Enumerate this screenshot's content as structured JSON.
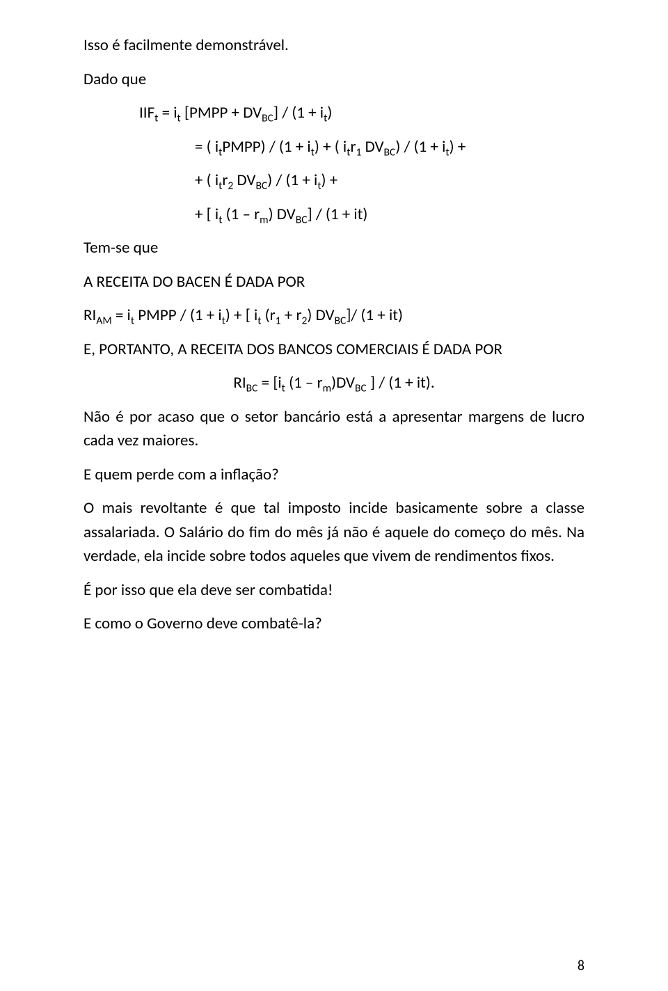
{
  "p1": "Isso é facilmente demonstrável.",
  "p2": "Dado que",
  "eq1a": "IIF",
  "eq1b": " = i",
  "eq1c": " [PMPP  +  DV",
  "eq1d": "] / (1  +  i",
  "eq1e": ")",
  "eq2a": "= ( i",
  "eq2b": "PMPP) / (1  +  i",
  "eq2c": ") + ( i",
  "eq2d": "r",
  "eq2e": " DV",
  "eq2f": ") / (1  +  i",
  "eq2g": ") +",
  "eq3a": "+ ( i",
  "eq3b": "r",
  "eq3c": " DV",
  "eq3d": ") / (1  +  i",
  "eq3e": ") +",
  "eq4a": "+ [ i",
  "eq4b": " ",
  "eq4c": "(1 – r",
  "eq4d": ") DV",
  "eq4e": "] / (1  +  it)",
  "p3": "Tem-se que",
  "p4": "A RECEITA DO BACEN É DADA POR",
  "eq5a": "RI",
  "eq5b": " = i",
  "eq5c": " PMPP / (1  +  i",
  "eq5d": ") +  [ i",
  "eq5e": " ",
  "eq5f": "(r",
  "eq5g": " + r",
  "eq5h": ") DV",
  "eq5i": "]/ (1  +  it)",
  "p5": "E, PORTANTO, A RECEITA DOS BANCOS COMERCIAIS É DADA POR",
  "eq6a": "RI",
  "eq6b": " = [i",
  "eq6c": " (1 – r",
  "eq6d": ")DV",
  "eq6e": " ] / (1  +  it).",
  "p6": "Não é por acaso que o setor bancário está a apresentar margens de lucro cada vez maiores.",
  "p7": "E quem perde com a inflação?",
  "p8": "O mais revoltante é que tal imposto incide basicamente sobre a classe assalariada. O Salário do fim do mês já não é aquele do começo do mês. Na verdade, ela incide sobre todos aqueles que vivem de rendimentos fixos.",
  "p9": "É por isso que ela deve ser combatida!",
  "p10": "E como o Governo deve combatê-la?",
  "sub_t": "t",
  "sub_BC": "BC",
  "sub_1": "1",
  "sub_2": "2",
  "sub_m": "m",
  "sub_AM": "AM",
  "page_number": "8"
}
